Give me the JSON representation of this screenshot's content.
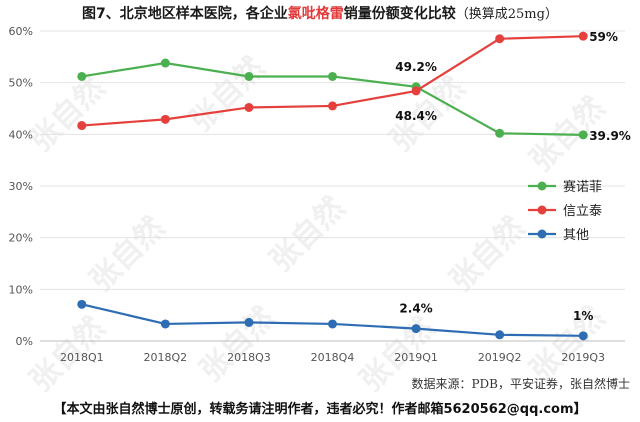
{
  "title": {
    "prefix": "图7、北京地区样本医院，各企业",
    "highlight": "氯吡格雷",
    "suffix": "销量份额变化比较",
    "unit": "（换算成25mg）"
  },
  "source": "数据来源：PDB，平安证券，张自然博士",
  "footer": "【本文由张自然博士原创，转载务请注明作者，违者必究！作者邮箱5620562@qq.com】",
  "watermark": "张自然",
  "colors": {
    "highlight": "#e23a3a"
  },
  "chart_data": {
    "type": "line",
    "categories": [
      "2018Q1",
      "2018Q2",
      "2018Q3",
      "2018Q4",
      "2019Q1",
      "2019Q2",
      "2019Q3"
    ],
    "ylim": [
      0,
      60
    ],
    "yticks": [
      "0%",
      "10%",
      "20%",
      "30%",
      "40%",
      "50%",
      "60%"
    ],
    "grid": true,
    "legend_position": "right",
    "series": [
      {
        "name": "赛诺菲",
        "color": "#4caf50",
        "values": [
          51.2,
          53.8,
          51.2,
          51.2,
          49.2,
          40.2,
          39.9
        ]
      },
      {
        "name": "信立泰",
        "color": "#e5403c",
        "values": [
          41.7,
          42.9,
          45.2,
          45.5,
          48.4,
          58.5,
          59.0
        ]
      },
      {
        "name": "其他",
        "color": "#2e6db4",
        "values": [
          7.1,
          3.3,
          3.6,
          3.3,
          2.4,
          1.2,
          1.0
        ]
      }
    ],
    "annotations": [
      {
        "text": "49.2%",
        "series": 0,
        "index": 4,
        "place": "above"
      },
      {
        "text": "48.4%",
        "series": 1,
        "index": 4,
        "place": "below"
      },
      {
        "text": "59%",
        "series": 1,
        "index": 6,
        "place": "right"
      },
      {
        "text": "39.9%",
        "series": 0,
        "index": 6,
        "place": "right"
      },
      {
        "text": "2.4%",
        "series": 2,
        "index": 4,
        "place": "above"
      },
      {
        "text": "1%",
        "series": 2,
        "index": 6,
        "place": "above"
      }
    ]
  }
}
